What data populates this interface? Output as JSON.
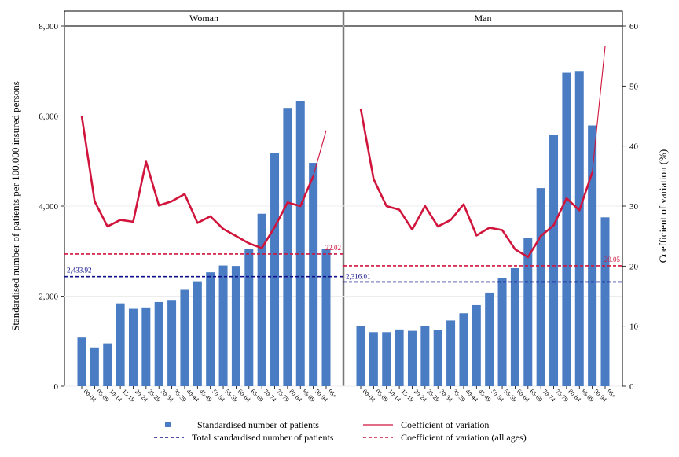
{
  "chart_data": {
    "type": "bar",
    "ylabel": "Standardised number of patients per 100,000 insured persons",
    "y2label": "Coefficient of variation (%)",
    "ylim": [
      0,
      8000
    ],
    "y2lim": [
      0,
      60
    ],
    "yticks": [
      "0",
      "2,000",
      "4,000",
      "6,000",
      "8,000"
    ],
    "yticks_values": [
      0,
      2000,
      4000,
      6000,
      8000
    ],
    "y2ticks": [
      "0",
      "10",
      "20",
      "30",
      "40",
      "50",
      "60"
    ],
    "y2ticks_values": [
      0,
      10,
      20,
      30,
      40,
      50,
      60
    ],
    "categories": [
      "00-04",
      "05-09",
      "10-14",
      "15-19",
      "20-24",
      "25-29",
      "30-34",
      "35-39",
      "40-44",
      "45-49",
      "50-54",
      "55-59",
      "60-64",
      "65-69",
      "70-74",
      "75-79",
      "80-84",
      "85-89",
      "90-94",
      "95+"
    ],
    "panels": [
      {
        "title": "Woman",
        "bars": [
          1080,
          860,
          950,
          1840,
          1720,
          1750,
          1870,
          1900,
          2140,
          2330,
          2530,
          2680,
          2670,
          3040,
          3830,
          5170,
          6180,
          6330,
          4960,
          3050
        ],
        "cv": [
          45.0,
          30.8,
          26.6,
          27.7,
          27.4,
          37.4,
          30.1,
          30.8,
          32.0,
          27.2,
          28.3,
          26.2,
          25.0,
          23.8,
          23.0,
          26.5,
          30.6,
          30.0,
          35.0,
          42.6
        ],
        "total_value": 2433.92,
        "total_label": "2,433.92",
        "cv_all_value": 22.02,
        "cv_all_label": "22.02"
      },
      {
        "title": "Man",
        "bars": [
          1330,
          1200,
          1200,
          1260,
          1230,
          1340,
          1240,
          1460,
          1620,
          1800,
          2080,
          2400,
          2620,
          3300,
          4400,
          5580,
          6960,
          7000,
          5790,
          3750
        ],
        "cv": [
          46.2,
          34.5,
          30.0,
          29.4,
          26.1,
          30.0,
          26.6,
          27.7,
          30.3,
          25.1,
          26.4,
          26.0,
          22.8,
          21.5,
          25.0,
          26.8,
          31.3,
          29.3,
          35.6,
          56.6
        ],
        "total_value": 2316.01,
        "total_label": "2,316.01",
        "cv_all_value": 20.05,
        "cv_all_label": "20.05"
      }
    ],
    "legend": [
      {
        "key": "bars",
        "label": "Standardised number of patients",
        "color": "#4a7cc4"
      },
      {
        "key": "cv",
        "label": "Coefficient of variation",
        "color": "#d0143c"
      },
      {
        "key": "total",
        "label": "Total standardised number of patients",
        "color": "#10108a"
      },
      {
        "key": "cv_all",
        "label": "Coefficient of variation (all ages)",
        "color": "#d0143c"
      }
    ],
    "legend_placement": "bottom",
    "grid": true,
    "colors": {
      "bar": "#4a7cc4",
      "cv_line": "#d0143c",
      "total_line": "#10108a",
      "cv_all_line": "#d0143c"
    }
  }
}
